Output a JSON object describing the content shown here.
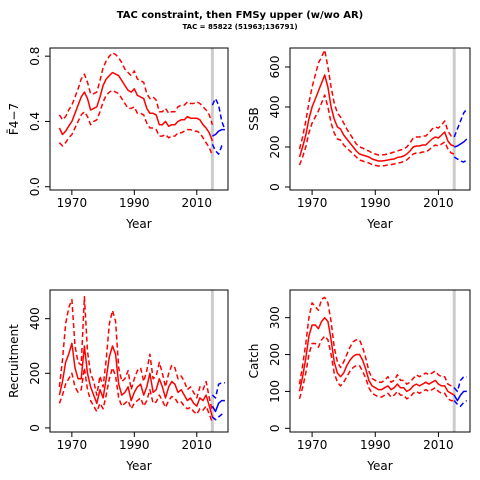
{
  "title": "TAC constraint, then FMSy upper (w/wo AR)",
  "subtitle": "TAC = 85822 (51963;136791)",
  "colors": {
    "historical": "#ff0000",
    "projection": "#0000ff",
    "vline": "#cccccc",
    "axis": "#000000"
  },
  "chart_data": [
    {
      "type": "line",
      "name": "F",
      "ylabel": "F̄4−7",
      "xlabel": "Year",
      "xticks": [
        1970,
        1990,
        2010
      ],
      "yticks": [
        0.0,
        0.4,
        0.8
      ],
      "ytick_labels": [
        "0.0",
        "0.4",
        "0.8"
      ],
      "xlim": [
        1963,
        2020
      ],
      "ylim": [
        -0.02,
        0.85
      ],
      "vline": 2015,
      "hist_years": [
        1966,
        2015
      ],
      "median": [
        0.36,
        0.32,
        0.34,
        0.37,
        0.4,
        0.45,
        0.5,
        0.55,
        0.58,
        0.54,
        0.47,
        0.48,
        0.49,
        0.55,
        0.62,
        0.66,
        0.68,
        0.7,
        0.69,
        0.68,
        0.65,
        0.62,
        0.59,
        0.58,
        0.6,
        0.56,
        0.55,
        0.54,
        0.48,
        0.45,
        0.45,
        0.44,
        0.38,
        0.38,
        0.4,
        0.37,
        0.38,
        0.38,
        0.4,
        0.41,
        0.41,
        0.43,
        0.42,
        0.42,
        0.42,
        0.41,
        0.38,
        0.36,
        0.33,
        0.28
      ],
      "lower": [
        0.27,
        0.25,
        0.27,
        0.3,
        0.32,
        0.36,
        0.4,
        0.44,
        0.46,
        0.43,
        0.38,
        0.4,
        0.41,
        0.46,
        0.52,
        0.56,
        0.58,
        0.59,
        0.58,
        0.57,
        0.54,
        0.51,
        0.48,
        0.48,
        0.49,
        0.45,
        0.45,
        0.44,
        0.39,
        0.36,
        0.36,
        0.35,
        0.31,
        0.31,
        0.32,
        0.3,
        0.31,
        0.31,
        0.33,
        0.33,
        0.34,
        0.35,
        0.35,
        0.34,
        0.34,
        0.33,
        0.3,
        0.27,
        0.24,
        0.19
      ],
      "upper": [
        0.44,
        0.41,
        0.43,
        0.47,
        0.5,
        0.55,
        0.6,
        0.66,
        0.69,
        0.64,
        0.57,
        0.57,
        0.58,
        0.65,
        0.73,
        0.77,
        0.8,
        0.82,
        0.81,
        0.79,
        0.76,
        0.72,
        0.7,
        0.68,
        0.71,
        0.66,
        0.65,
        0.64,
        0.57,
        0.54,
        0.55,
        0.53,
        0.46,
        0.46,
        0.48,
        0.45,
        0.46,
        0.46,
        0.49,
        0.5,
        0.5,
        0.52,
        0.51,
        0.51,
        0.52,
        0.51,
        0.49,
        0.47,
        0.44,
        0.38
      ],
      "proj_years": [
        2015,
        2019
      ],
      "proj_median": [
        0.31,
        0.32,
        0.34,
        0.35,
        0.35
      ],
      "proj_lower": [
        0.26,
        0.22,
        0.2,
        0.25,
        0.26
      ],
      "proj_upper": [
        0.5,
        0.54,
        0.5,
        0.4,
        0.35
      ]
    },
    {
      "type": "line",
      "name": "SSB",
      "ylabel": "SSB",
      "xlabel": "Year",
      "xticks": [
        1970,
        1990,
        2010
      ],
      "yticks": [
        0,
        200,
        400,
        600
      ],
      "ytick_labels": [
        "0",
        "200",
        "400",
        "600"
      ],
      "xlim": [
        1963,
        2020
      ],
      "ylim": [
        -15,
        695
      ],
      "vline": 2015,
      "hist_years": [
        1966,
        2015
      ],
      "median": [
        150,
        200,
        260,
        340,
        400,
        440,
        480,
        520,
        560,
        500,
        400,
        340,
        300,
        290,
        260,
        240,
        220,
        200,
        180,
        165,
        160,
        155,
        150,
        140,
        135,
        130,
        130,
        132,
        135,
        138,
        140,
        148,
        150,
        155,
        165,
        180,
        200,
        205,
        205,
        210,
        210,
        225,
        240,
        250,
        245,
        260,
        275,
        230,
        210,
        205
      ],
      "lower": [
        110,
        150,
        200,
        270,
        320,
        350,
        380,
        420,
        460,
        400,
        320,
        270,
        240,
        235,
        210,
        195,
        180,
        165,
        150,
        135,
        130,
        125,
        120,
        112,
        108,
        105,
        105,
        107,
        110,
        112,
        115,
        120,
        122,
        128,
        135,
        150,
        165,
        170,
        170,
        175,
        175,
        185,
        200,
        210,
        205,
        215,
        225,
        190,
        170,
        165
      ],
      "upper": [
        190,
        250,
        330,
        420,
        500,
        560,
        620,
        650,
        685,
        600,
        500,
        420,
        370,
        350,
        320,
        290,
        265,
        240,
        215,
        200,
        195,
        185,
        180,
        170,
        165,
        160,
        160,
        162,
        165,
        170,
        175,
        180,
        185,
        190,
        200,
        220,
        245,
        250,
        250,
        255,
        255,
        270,
        290,
        300,
        295,
        310,
        330,
        280,
        255,
        250
      ],
      "proj_years": [
        2015,
        2019
      ],
      "proj_median": [
        200,
        205,
        215,
        225,
        240
      ],
      "proj_lower": [
        150,
        140,
        130,
        125,
        135
      ],
      "proj_upper": [
        250,
        290,
        330,
        370,
        390
      ]
    },
    {
      "type": "line",
      "name": "Recruitment",
      "ylabel": "Recruitment",
      "xlabel": "Year",
      "xticks": [
        1970,
        1990,
        2010
      ],
      "yticks": [
        0,
        200,
        400
      ],
      "ytick_labels": [
        "0",
        "200",
        "400"
      ],
      "xlim": [
        1963,
        2020
      ],
      "ylim": [
        -15,
        505
      ],
      "vline": 2015,
      "hist_years": [
        1966,
        2015
      ],
      "median": [
        120,
        170,
        240,
        270,
        310,
        220,
        180,
        180,
        300,
        200,
        150,
        120,
        90,
        140,
        110,
        180,
        260,
        300,
        270,
        160,
        120,
        130,
        150,
        100,
        130,
        150,
        160,
        120,
        150,
        200,
        130,
        140,
        180,
        150,
        110,
        150,
        170,
        160,
        130,
        140,
        120,
        100,
        110,
        90,
        80,
        110,
        100,
        120,
        80,
        40
      ],
      "lower": [
        90,
        120,
        160,
        180,
        200,
        150,
        130,
        140,
        220,
        140,
        100,
        80,
        60,
        90,
        70,
        120,
        180,
        220,
        190,
        110,
        80,
        90,
        100,
        70,
        90,
        100,
        110,
        80,
        100,
        140,
        90,
        95,
        120,
        100,
        75,
        100,
        115,
        110,
        90,
        95,
        80,
        70,
        75,
        60,
        50,
        70,
        65,
        80,
        50,
        20
      ],
      "upper": [
        150,
        250,
        380,
        440,
        470,
        300,
        240,
        230,
        480,
        280,
        200,
        170,
        120,
        190,
        150,
        250,
        380,
        430,
        390,
        220,
        170,
        180,
        210,
        140,
        180,
        210,
        220,
        170,
        210,
        270,
        180,
        190,
        240,
        200,
        150,
        200,
        230,
        220,
        180,
        190,
        170,
        140,
        150,
        130,
        110,
        150,
        140,
        170,
        110,
        60
      ],
      "proj_years": [
        2015,
        2019
      ],
      "proj_median": [
        80,
        60,
        90,
        100,
        100
      ],
      "proj_lower": [
        40,
        30,
        40,
        50,
        55
      ],
      "proj_upper": [
        120,
        110,
        160,
        165,
        165
      ]
    },
    {
      "type": "line",
      "name": "Catch",
      "ylabel": "Catch",
      "xlabel": "Year",
      "xticks": [
        1970,
        1990,
        2010
      ],
      "yticks": [
        0,
        100,
        200,
        300
      ],
      "ytick_labels": [
        "0",
        "100",
        "200",
        "300"
      ],
      "xlim": [
        1963,
        2020
      ],
      "ylim": [
        -10,
        375
      ],
      "vline": 2015,
      "hist_years": [
        1966,
        2015
      ],
      "median": [
        100,
        140,
        190,
        250,
        280,
        280,
        270,
        290,
        300,
        290,
        240,
        180,
        150,
        140,
        150,
        170,
        185,
        195,
        200,
        200,
        185,
        160,
        130,
        115,
        110,
        105,
        105,
        110,
        115,
        105,
        110,
        120,
        110,
        110,
        100,
        105,
        115,
        120,
        115,
        120,
        125,
        120,
        125,
        130,
        120,
        115,
        115,
        100,
        95,
        90
      ],
      "lower": [
        80,
        110,
        150,
        200,
        230,
        230,
        220,
        240,
        250,
        240,
        200,
        150,
        125,
        115,
        125,
        140,
        155,
        165,
        170,
        170,
        155,
        135,
        110,
        95,
        90,
        85,
        85,
        90,
        95,
        85,
        90,
        100,
        90,
        90,
        80,
        85,
        95,
        100,
        95,
        100,
        105,
        100,
        105,
        110,
        100,
        95,
        95,
        80,
        75,
        75
      ],
      "upper": [
        120,
        170,
        230,
        300,
        340,
        330,
        320,
        350,
        355,
        340,
        290,
        220,
        180,
        165,
        180,
        200,
        220,
        235,
        240,
        240,
        220,
        190,
        155,
        135,
        130,
        125,
        125,
        130,
        140,
        125,
        130,
        145,
        130,
        130,
        120,
        125,
        135,
        145,
        140,
        145,
        150,
        145,
        150,
        155,
        145,
        140,
        140,
        120,
        115,
        110
      ],
      "proj_years": [
        2015,
        2019
      ],
      "proj_median": [
        90,
        75,
        90,
        100,
        100
      ],
      "proj_lower": [
        75,
        65,
        60,
        70,
        75
      ],
      "proj_upper": [
        110,
        100,
        130,
        140,
        140
      ]
    }
  ]
}
